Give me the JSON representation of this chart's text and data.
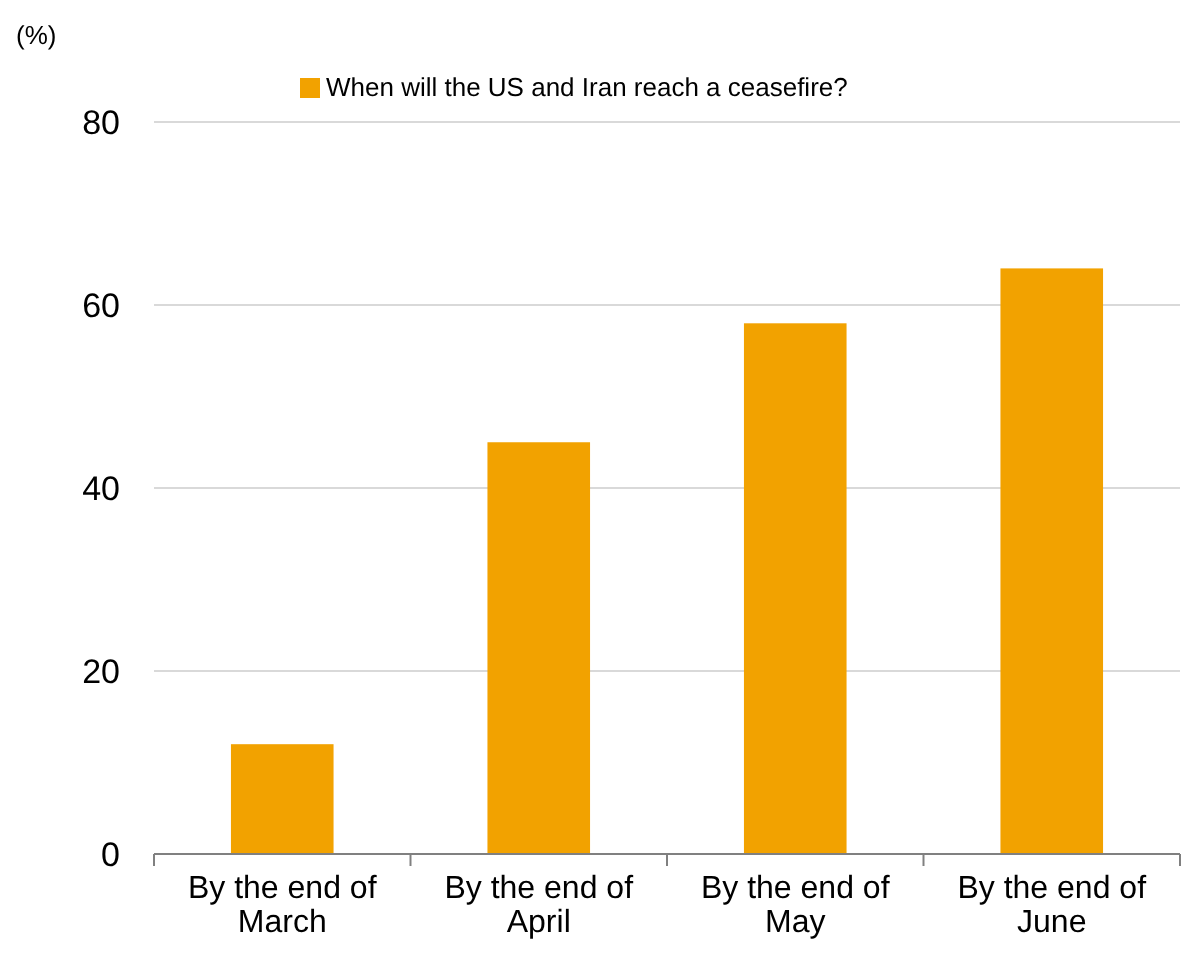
{
  "chart_data": {
    "type": "bar",
    "ylabel": "(%)",
    "categories": [
      "By the end of March",
      "By the end of April",
      "By the end of May",
      "By the end of June"
    ],
    "series": [
      {
        "name": "When will the US and Iran reach a ceasefire?",
        "color": "#f2a200",
        "values": [
          12,
          45,
          58,
          64
        ]
      }
    ],
    "ylim": [
      0,
      80
    ],
    "yticks": [
      0,
      20,
      40,
      60,
      80
    ],
    "grid": "y",
    "legend": "top"
  }
}
